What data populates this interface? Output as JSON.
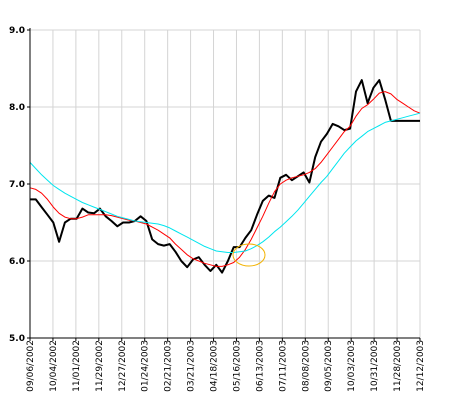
{
  "chart_data": {
    "type": "line",
    "title": "",
    "xlabel": "",
    "ylabel": "",
    "ylim": [
      5.0,
      9.0
    ],
    "yticks": [
      "5.0",
      "6.0",
      "7.0",
      "8.0",
      "9.0"
    ],
    "grid": true,
    "x_tick_labels": [
      "09/06/2002",
      "10/04/2002",
      "11/01/2002",
      "11/29/2002",
      "12/27/2002",
      "01/24/2003",
      "02/21/2003",
      "03/21/2003",
      "04/18/2003",
      "05/16/2003",
      "06/13/2003",
      "07/11/2003",
      "08/08/2003",
      "09/05/2003",
      "10/03/2003",
      "10/31/2003",
      "11/28/2003",
      "12/12/2003"
    ],
    "x": [
      0,
      1,
      2,
      3,
      4,
      5,
      6,
      7,
      8,
      9,
      10,
      11,
      12,
      13,
      14,
      15,
      16,
      17,
      18,
      19,
      20,
      21,
      22,
      23,
      24,
      25,
      26,
      27,
      28,
      29,
      30,
      31,
      32,
      33,
      34,
      35,
      36,
      37,
      38,
      39,
      40,
      41,
      42,
      43,
      44,
      45,
      46,
      47,
      48,
      49,
      50,
      51,
      52,
      53,
      54,
      55,
      56,
      57,
      58,
      59,
      60,
      61,
      62,
      63,
      64,
      65,
      66,
      67
    ],
    "series": [
      {
        "color": "#000000",
        "values": [
          6.8,
          6.8,
          6.7,
          6.6,
          6.5,
          6.25,
          6.5,
          6.55,
          6.55,
          6.68,
          6.63,
          6.62,
          6.68,
          6.58,
          6.52,
          6.45,
          6.5,
          6.5,
          6.52,
          6.58,
          6.52,
          6.28,
          6.22,
          6.2,
          6.22,
          6.12,
          6.0,
          5.92,
          6.02,
          6.05,
          5.95,
          5.87,
          5.95,
          5.85,
          6.0,
          6.18,
          6.18,
          6.3,
          6.4,
          6.6,
          6.78,
          6.85,
          6.82,
          7.08,
          7.12,
          7.05,
          7.1,
          7.15,
          7.02,
          7.35,
          7.55,
          7.65,
          7.78,
          7.75,
          7.7,
          7.72,
          8.2,
          8.35,
          8.05,
          8.25,
          8.35,
          8.1,
          7.82,
          7.82,
          7.82,
          7.82,
          7.82,
          7.82
        ]
      },
      {
        "color": "#ff0000",
        "values": [
          6.95,
          6.93,
          6.88,
          6.8,
          6.7,
          6.62,
          6.57,
          6.55,
          6.55,
          6.57,
          6.6,
          6.6,
          6.6,
          6.6,
          6.59,
          6.57,
          6.55,
          6.53,
          6.52,
          6.5,
          6.48,
          6.44,
          6.4,
          6.35,
          6.3,
          6.22,
          6.15,
          6.08,
          6.03,
          6.0,
          5.97,
          5.95,
          5.93,
          5.93,
          5.95,
          5.98,
          6.05,
          6.15,
          6.28,
          6.43,
          6.58,
          6.75,
          6.9,
          7.0,
          7.05,
          7.08,
          7.1,
          7.12,
          7.15,
          7.2,
          7.28,
          7.38,
          7.48,
          7.58,
          7.68,
          7.75,
          7.88,
          7.98,
          8.03,
          8.1,
          8.18,
          8.2,
          8.17,
          8.1,
          8.05,
          8.0,
          7.95,
          7.92
        ]
      },
      {
        "color": "#00e5ee",
        "values": [
          7.28,
          7.2,
          7.12,
          7.05,
          6.98,
          6.93,
          6.88,
          6.84,
          6.8,
          6.76,
          6.73,
          6.7,
          6.67,
          6.64,
          6.61,
          6.58,
          6.56,
          6.54,
          6.52,
          6.51,
          6.5,
          6.49,
          6.48,
          6.46,
          6.43,
          6.39,
          6.35,
          6.31,
          6.27,
          6.23,
          6.19,
          6.16,
          6.13,
          6.12,
          6.11,
          6.11,
          6.12,
          6.13,
          6.16,
          6.2,
          6.25,
          6.31,
          6.38,
          6.44,
          6.51,
          6.58,
          6.66,
          6.75,
          6.84,
          6.93,
          7.02,
          7.1,
          7.2,
          7.3,
          7.4,
          7.48,
          7.56,
          7.62,
          7.68,
          7.72,
          7.76,
          7.8,
          7.82,
          7.84,
          7.86,
          7.88,
          7.9,
          7.92
        ]
      }
    ]
  }
}
